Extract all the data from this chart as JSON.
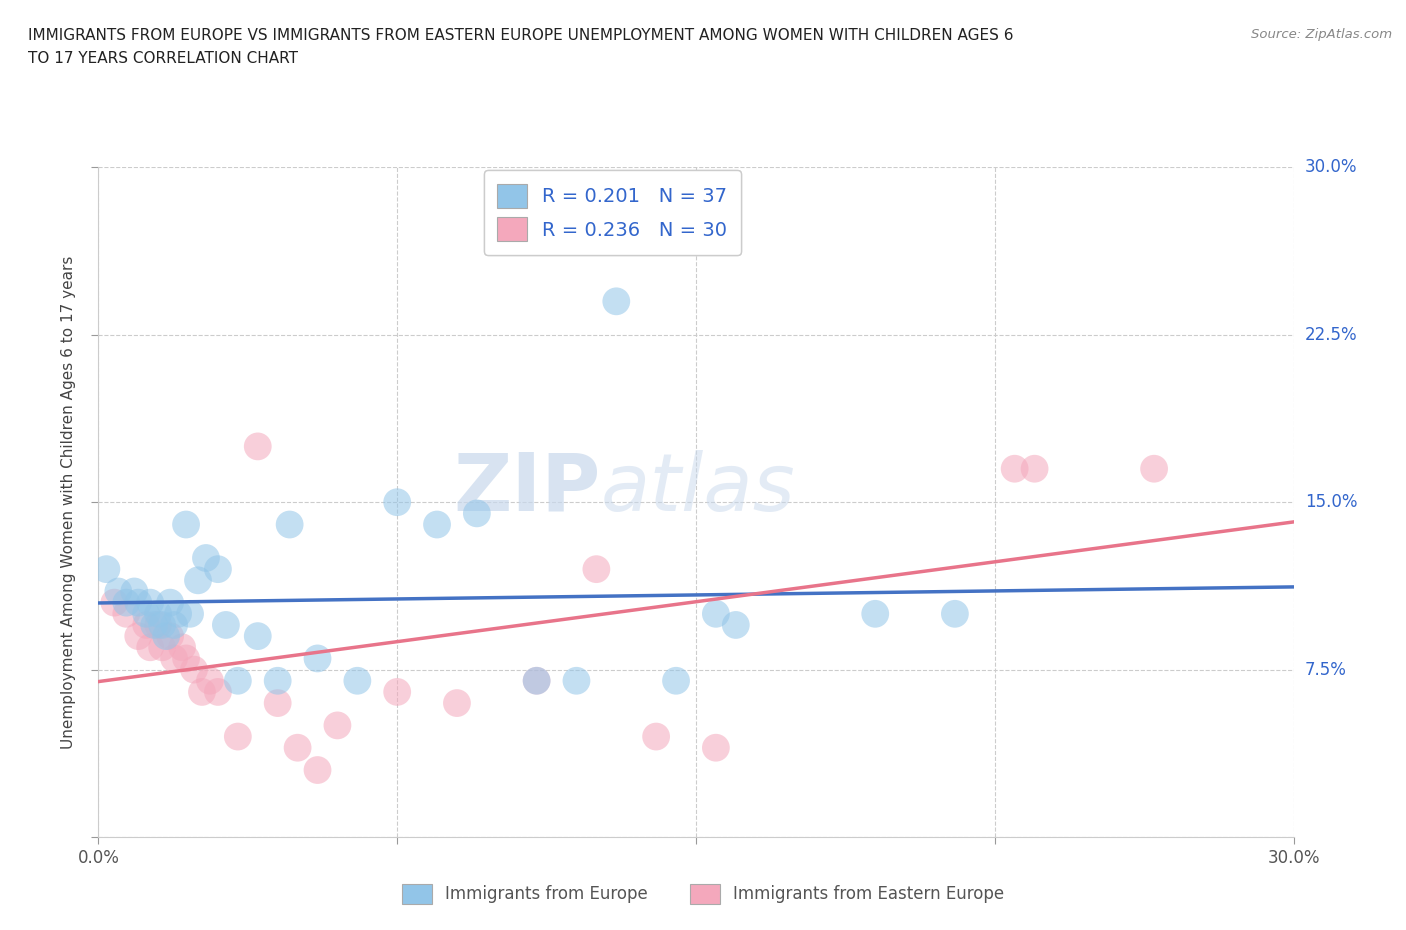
{
  "title_line1": "IMMIGRANTS FROM EUROPE VS IMMIGRANTS FROM EASTERN EUROPE UNEMPLOYMENT AMONG WOMEN WITH CHILDREN AGES 6",
  "title_line2": "TO 17 YEARS CORRELATION CHART",
  "source": "Source: ZipAtlas.com",
  "ylabel": "Unemployment Among Women with Children Ages 6 to 17 years",
  "xlim": [
    0.0,
    0.3
  ],
  "ylim": [
    0.0,
    0.3
  ],
  "R_europe": 0.201,
  "N_europe": 37,
  "R_eastern": 0.236,
  "N_eastern": 30,
  "color_europe": "#92C5E8",
  "color_eastern": "#F4A8BC",
  "line_color_europe": "#4472C4",
  "line_color_eastern": "#E8748A",
  "europe_x": [
    0.002,
    0.005,
    0.007,
    0.009,
    0.01,
    0.012,
    0.013,
    0.014,
    0.015,
    0.016,
    0.017,
    0.018,
    0.019,
    0.02,
    0.022,
    0.023,
    0.025,
    0.027,
    0.03,
    0.032,
    0.035,
    0.04,
    0.045,
    0.048,
    0.055,
    0.065,
    0.075,
    0.085,
    0.095,
    0.11,
    0.12,
    0.13,
    0.145,
    0.155,
    0.16,
    0.195,
    0.215
  ],
  "europe_y": [
    0.12,
    0.11,
    0.105,
    0.11,
    0.105,
    0.1,
    0.105,
    0.095,
    0.1,
    0.095,
    0.09,
    0.105,
    0.095,
    0.1,
    0.14,
    0.1,
    0.115,
    0.125,
    0.12,
    0.095,
    0.07,
    0.09,
    0.07,
    0.14,
    0.08,
    0.07,
    0.15,
    0.14,
    0.145,
    0.07,
    0.07,
    0.24,
    0.07,
    0.1,
    0.095,
    0.1,
    0.1
  ],
  "eastern_x": [
    0.004,
    0.007,
    0.01,
    0.012,
    0.013,
    0.015,
    0.016,
    0.018,
    0.019,
    0.021,
    0.022,
    0.024,
    0.026,
    0.028,
    0.03,
    0.035,
    0.04,
    0.045,
    0.05,
    0.055,
    0.06,
    0.075,
    0.09,
    0.11,
    0.125,
    0.14,
    0.155,
    0.23,
    0.235,
    0.265
  ],
  "eastern_y": [
    0.105,
    0.1,
    0.09,
    0.095,
    0.085,
    0.095,
    0.085,
    0.09,
    0.08,
    0.085,
    0.08,
    0.075,
    0.065,
    0.07,
    0.065,
    0.045,
    0.175,
    0.06,
    0.04,
    0.03,
    0.05,
    0.065,
    0.06,
    0.07,
    0.12,
    0.045,
    0.04,
    0.165,
    0.165,
    0.165
  ]
}
